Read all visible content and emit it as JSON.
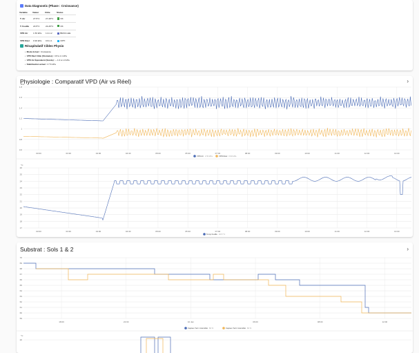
{
  "diagnostic": {
    "title": "Data Diagnostic (Phase : Croissance)",
    "columns": [
      "Variable",
      "Valeur",
      "Cible",
      "Status"
    ],
    "rows": [
      {
        "variable": "T. Air",
        "value": "27.5°C",
        "target": "27-28°C",
        "status": "OK",
        "status_color": "#43a047"
      },
      {
        "variable": "T. Feuille",
        "value": "24.5°C",
        "target": "24-25°C",
        "status": "OK",
        "status_color": "#43a047"
      },
      {
        "variable": "VPD Air",
        "value": "1.53 kPa",
        "target": "1.0-1.2",
        "status": "BRAS LEE",
        "status_color": "#5c6bc0"
      },
      {
        "variable": "VPD Réel",
        "value": "0.93 kPa",
        "target": "0.8-1.1",
        "status": "OPTI",
        "status_color": "#29b6f6"
      }
    ]
  },
  "recap": {
    "title": "Récapitulatif Cibles Physio",
    "items": [
      {
        "label": "Mode Actuel :",
        "value": "Croissance"
      },
      {
        "label": "VPD Réel Cible (Stomates) :",
        "value": "0.8 à 1.1 kPa"
      },
      {
        "label": "VPD Air Équivalent (Sonde) :",
        "value": "~ 1.0 à 1.3 kPa"
      },
      {
        "label": "Stabilisation actuel :",
        "value": "0 °/h kPa"
      }
    ]
  },
  "vpd_card": {
    "title": "Physiologie : Comparatif VPD (Air vs Réel)"
  },
  "substrat_card": {
    "title": "Substrat : Sols 1 & 2"
  },
  "colors": {
    "blue": "#4a6bb5",
    "orange": "#f0b555",
    "grid": "#e6e6e6"
  },
  "chart_data": [
    {
      "type": "line",
      "ylabel": "kPa",
      "ylim": [
        0.6,
        1.8
      ],
      "yticks": [
        "1.8",
        "1.6",
        "1.4",
        "1.2",
        "1",
        "0.8",
        "0.6"
      ],
      "xticks": [
        "03:00",
        "03:30",
        "04:00",
        "04:30",
        "05:00",
        "05:30",
        "07:00",
        "08:00",
        "09:00",
        "10:00",
        "11:00",
        "12:00",
        "13:00"
      ],
      "series": [
        {
          "name": "VPD Air",
          "value_label": "1.53 kPa",
          "color": "#4a6bb5"
        },
        {
          "name": "VPD Réel",
          "value_label": "0.93 kPa",
          "color": "#f0b555"
        }
      ]
    },
    {
      "type": "line",
      "ylabel": "°C",
      "ylim": [
        17,
        26
      ],
      "yticks": [
        "26",
        "25",
        "24",
        "23",
        "22",
        "21",
        "20",
        "19",
        "18",
        "17"
      ],
      "xticks": [
        "03:00",
        "03:30",
        "04:00",
        "04:30",
        "05:00",
        "05:30",
        "07:00",
        "08:00",
        "09:00",
        "10:00",
        "11:00",
        "12:00",
        "13:00"
      ],
      "series": [
        {
          "name": "Temp Feuille",
          "value_label": "24.5 °C",
          "color": "#4a6bb5"
        }
      ]
    },
    {
      "type": "line",
      "ylabel": "",
      "ylim": [
        59,
        70
      ],
      "yticks": [
        "70",
        "69",
        "68",
        "67",
        "66",
        "65",
        "64",
        "63",
        "62",
        "61",
        "60",
        "59"
      ],
      "xticks": [
        "18:00",
        "22:00",
        "10 Jan",
        "06:00",
        "08:00",
        "12:00"
      ],
      "series": [
        {
          "name": "Capteur Sol 1 Humidité",
          "value_label": "60 %",
          "color": "#4a6bb5"
        },
        {
          "name": "Capteur Sol 2 Humidité",
          "value_label": "60 %",
          "color": "#f0b555"
        }
      ]
    },
    {
      "type": "line",
      "ylabel": "°C",
      "yticks": [
        "26"
      ],
      "series": []
    }
  ]
}
